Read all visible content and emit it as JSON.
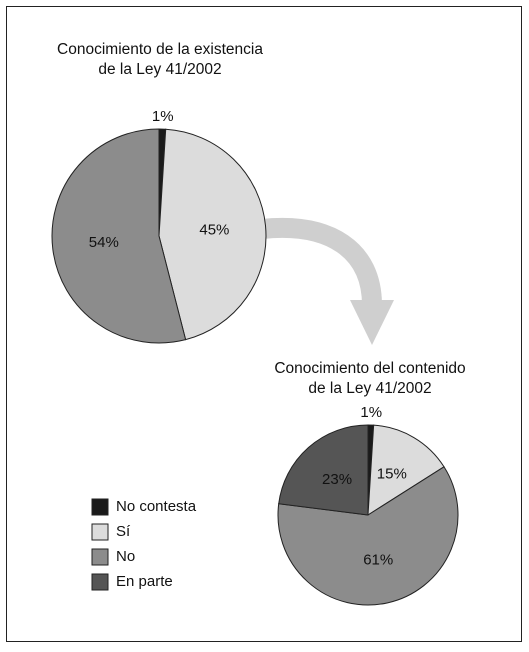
{
  "chart_data": [
    {
      "type": "pie",
      "title": "Conocimiento de la existencia\nde la Ley 41/2002",
      "categories": [
        "No contesta",
        "Sí",
        "No"
      ],
      "values": [
        1,
        45,
        54
      ],
      "value_labels": [
        "1%",
        "45%",
        "54%"
      ],
      "colors": [
        "#1a1a1a",
        "#dcdcdc",
        "#8c8c8c"
      ]
    },
    {
      "type": "pie",
      "title": "Conocimiento del contenido\nde la Ley 41/2002",
      "categories": [
        "No contesta",
        "Sí",
        "No",
        "En parte"
      ],
      "values": [
        1,
        15,
        61,
        23
      ],
      "value_labels": [
        "1%",
        "15%",
        "61%",
        "23%"
      ],
      "colors": [
        "#1a1a1a",
        "#dcdcdc",
        "#8c8c8c",
        "#555555"
      ],
      "legend": "lower left"
    }
  ]
}
